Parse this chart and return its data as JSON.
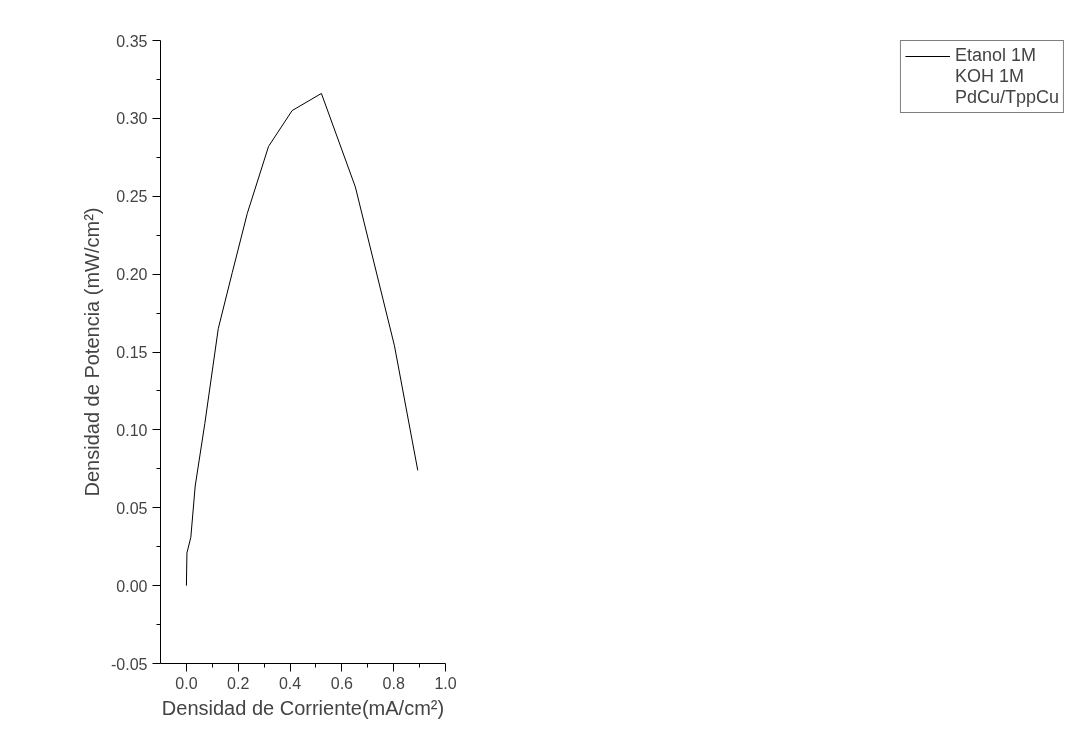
{
  "chart_data": {
    "type": "line",
    "xlabel": "Densidad de Corriente(mA/cm²)",
    "ylabel": "Densidad de Potencia (mW/cm²)",
    "x": [
      0.0,
      0.002,
      0.017,
      0.034,
      0.071,
      0.123,
      0.177,
      0.235,
      0.317,
      0.408,
      0.521,
      0.652,
      0.803,
      0.893
    ],
    "series": [
      {
        "name": "Etanol 1M",
        "color": "#000000",
        "values": [
          0.0,
          0.021,
          0.031,
          0.064,
          0.104,
          0.165,
          0.201,
          0.239,
          0.282,
          0.305,
          0.316,
          0.256,
          0.154,
          0.074
        ]
      }
    ],
    "annotations": [
      "KOH 1M",
      "PdCu/TppCu"
    ],
    "xlim": [
      -0.1,
      1.0
    ],
    "ylim": [
      -0.05,
      0.35
    ],
    "xticks": [
      {
        "value": 0,
        "label": "0.0"
      },
      {
        "value": 0.2,
        "label": "0.2"
      },
      {
        "value": 0.4,
        "label": "0.4"
      },
      {
        "value": 0.6,
        "label": "0.6"
      },
      {
        "value": 0.8,
        "label": "0.8"
      },
      {
        "value": 1,
        "label": "1.0"
      }
    ],
    "yticks": [
      {
        "value": -0.05,
        "label": "-0.05"
      },
      {
        "value": 0,
        "label": "0.00"
      },
      {
        "value": 0.05,
        "label": "0.05"
      },
      {
        "value": 0.1,
        "label": "0.10"
      },
      {
        "value": 0.15,
        "label": "0.15"
      },
      {
        "value": 0.2,
        "label": "0.20"
      },
      {
        "value": 0.25,
        "label": "0.25"
      },
      {
        "value": 0.3,
        "label": "0.30"
      },
      {
        "value": 0.35,
        "label": "0.35"
      }
    ],
    "grid": false,
    "legend": "top right",
    "marker": "none",
    "line_style": "solid"
  }
}
